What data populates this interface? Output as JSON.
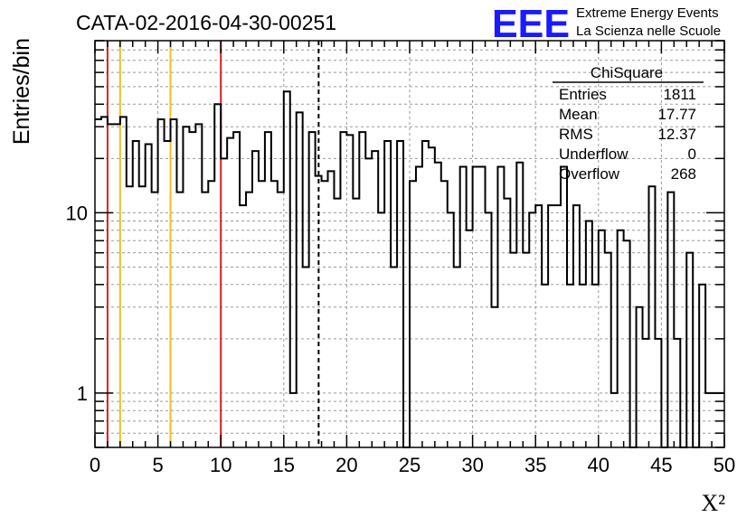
{
  "chart_data": {
    "type": "histogram",
    "title": "CATA-02-2016-04-30-00251",
    "xlabel": "X²",
    "ylabel": "Entries/bin",
    "xlim": [
      0,
      50
    ],
    "ylim": [
      0.5,
      90
    ],
    "yscale": "log",
    "grid": true,
    "bin_width": 0.5,
    "x_ticks": [
      "0",
      "5",
      "10",
      "15",
      "20",
      "25",
      "30",
      "35",
      "40",
      "45",
      "50"
    ],
    "y_ticks": [
      "1",
      "10"
    ],
    "bins": [
      [
        0,
        33
      ],
      [
        0.5,
        34
      ],
      [
        1,
        31
      ],
      [
        1.5,
        31
      ],
      [
        2,
        34
      ],
      [
        2.5,
        14
      ],
      [
        3,
        25
      ],
      [
        3.5,
        14
      ],
      [
        4,
        24
      ],
      [
        4.5,
        13
      ],
      [
        5,
        33
      ],
      [
        5.5,
        25
      ],
      [
        6,
        33
      ],
      [
        6.5,
        13
      ],
      [
        7,
        30
      ],
      [
        7.5,
        28
      ],
      [
        8,
        31
      ],
      [
        8.5,
        13
      ],
      [
        9,
        15
      ],
      [
        9.5,
        40
      ],
      [
        10,
        20
      ],
      [
        10.5,
        26
      ],
      [
        11,
        28
      ],
      [
        11.5,
        11
      ],
      [
        12,
        13
      ],
      [
        12.5,
        22
      ],
      [
        13,
        15
      ],
      [
        13.5,
        28
      ],
      [
        14,
        15
      ],
      [
        14.5,
        13
      ],
      [
        15,
        47
      ],
      [
        15.5,
        1
      ],
      [
        16,
        36
      ],
      [
        16.5,
        5
      ],
      [
        17,
        28
      ],
      [
        17.5,
        16
      ],
      [
        18,
        15
      ],
      [
        18.5,
        17
      ],
      [
        19,
        12
      ],
      [
        19.5,
        28
      ],
      [
        20,
        27
      ],
      [
        20.5,
        12
      ],
      [
        21,
        28
      ],
      [
        21.5,
        20
      ],
      [
        22,
        22
      ],
      [
        22.5,
        10
      ],
      [
        23,
        25
      ],
      [
        23.5,
        5
      ],
      [
        24,
        25
      ],
      [
        24.5,
        0.4
      ],
      [
        25,
        15
      ],
      [
        25.5,
        18
      ],
      [
        26,
        25
      ],
      [
        26.5,
        23
      ],
      [
        27,
        19
      ],
      [
        27.5,
        15
      ],
      [
        28,
        10
      ],
      [
        28.5,
        5
      ],
      [
        29,
        18
      ],
      [
        29.5,
        8
      ],
      [
        30,
        18
      ],
      [
        30.5,
        18
      ],
      [
        31,
        10
      ],
      [
        31.5,
        3
      ],
      [
        32,
        18
      ],
      [
        32.5,
        12
      ],
      [
        33,
        6
      ],
      [
        33.5,
        19
      ],
      [
        34,
        6
      ],
      [
        34.5,
        10
      ],
      [
        35,
        11
      ],
      [
        35.5,
        4
      ],
      [
        36,
        11
      ],
      [
        36.5,
        11
      ],
      [
        37,
        18
      ],
      [
        37.5,
        4
      ],
      [
        38,
        11
      ],
      [
        38.5,
        4
      ],
      [
        39,
        9
      ],
      [
        39.5,
        4
      ],
      [
        40,
        8
      ],
      [
        40.5,
        6
      ],
      [
        41,
        1
      ],
      [
        41.5,
        8
      ],
      [
        42,
        7
      ],
      [
        42.5,
        0.4
      ],
      [
        43,
        3
      ],
      [
        43.5,
        2
      ],
      [
        44,
        14
      ],
      [
        44.5,
        2
      ],
      [
        45,
        0.4
      ],
      [
        45.5,
        13
      ],
      [
        46,
        2
      ],
      [
        46.5,
        0.4
      ],
      [
        47,
        6
      ],
      [
        47.5,
        0.4
      ],
      [
        48,
        4
      ],
      [
        48.5,
        1
      ],
      [
        49,
        1
      ],
      [
        49.5,
        1
      ]
    ],
    "reference_lines": [
      {
        "x": 1,
        "color": "#dd2020",
        "style": "solid"
      },
      {
        "x": 2,
        "color": "#f0c020",
        "style": "solid"
      },
      {
        "x": 6,
        "color": "#f0c020",
        "style": "solid"
      },
      {
        "x": 10,
        "color": "#dd2020",
        "style": "solid"
      },
      {
        "x": 17.77,
        "color": "#000000",
        "style": "dashed"
      }
    ],
    "stats": {
      "name": "ChiSquare",
      "rows": [
        {
          "label": "Entries",
          "value": "1811"
        },
        {
          "label": "Mean",
          "value": "17.77"
        },
        {
          "label": "RMS",
          "value": "12.37"
        },
        {
          "label": "Underflow",
          "value": "0"
        },
        {
          "label": "Overflow",
          "value": "268"
        }
      ]
    },
    "logo": {
      "mark": "EEE",
      "line1": "Extreme Energy Events",
      "line2": "La Scienza nelle Scuole",
      "color": "#1a1aff"
    }
  }
}
